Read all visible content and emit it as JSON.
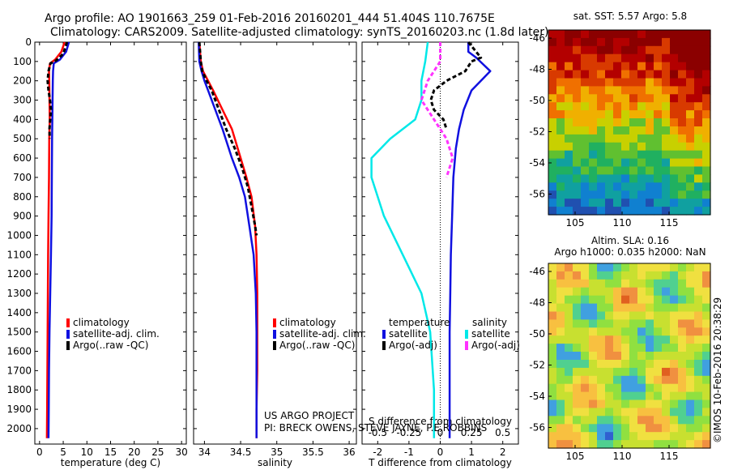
{
  "header": {
    "line1": "Argo profile: AO 1901663_259 01-Feb-2016 20160201_444 51.404S 110.7675E",
    "line2": "Climatology: CARS2009. Satellite-adjusted climatology: synTS_20160203.nc (1.8d later)"
  },
  "depth_ticks": [
    0,
    100,
    200,
    300,
    400,
    500,
    600,
    700,
    800,
    900,
    1000,
    1100,
    1200,
    1300,
    1400,
    1500,
    1600,
    1700,
    1800,
    1900,
    2000
  ],
  "colors": {
    "climatology": "#ff0000",
    "satellite": "#1010e0",
    "argo": "#000000",
    "sal_sat": "#00e8e8",
    "sal_argo": "#ff33ff"
  },
  "panels": {
    "temp": {
      "xlabel": "temperature (deg C)",
      "xticks": [
        "0",
        "5",
        "10",
        "15",
        "20",
        "25",
        "30"
      ],
      "legend": [
        "climatology",
        "satellite-adj. clim.",
        "Argo(..raw -QC)"
      ]
    },
    "sal": {
      "xlabel": "salinity",
      "xticks": [
        "34",
        "34.5",
        "35",
        "35.5",
        "36"
      ],
      "legend": [
        "climatology",
        "satellite-adj. clim.",
        "Argo(..raw -QC)"
      ],
      "credit1": "US ARGO PROJECT",
      "credit2": "PI: BRECK OWENS, STEVE JAYNE, P.E.ROBBINS"
    },
    "diff": {
      "xlabel": "T difference from climatology",
      "xticks": [
        "-2",
        "-1",
        "0",
        "1",
        "2"
      ],
      "top_label": "S difference from climatology",
      "top_ticks": [
        "-0.5",
        "-0.25",
        "0",
        "0.25",
        "0.5"
      ],
      "legend_temp_title": "temperature",
      "legend_sal_title": "salinity",
      "legend_temp": [
        "satellite",
        "Argo(-adj)"
      ],
      "legend_sal": [
        "satellite",
        "Argo(-adj)"
      ]
    }
  },
  "maps": {
    "sst_title": "sat. SST: 5.57 Argo: 5.8",
    "sla_title1": "Altim. SLA: 0.16",
    "sla_title2": "Argo h1000: 0.035 h2000: NaN",
    "yticks": [
      "-46",
      "-48",
      "-50",
      "-52",
      "-54",
      "-56"
    ],
    "xticks": [
      "105",
      "110",
      "115"
    ]
  },
  "stamp": "©IMOS 10-Feb-2016 20:38:29",
  "chart_data": [
    {
      "type": "line",
      "title": "",
      "xlabel": "temperature (deg C)",
      "ylabel": "",
      "xlim": [
        -1,
        31
      ],
      "ylim": [
        2080,
        0
      ],
      "series": [
        {
          "name": "climatology",
          "x": [
            5.3,
            4.6,
            3.3,
            2.2,
            2.0,
            2.05,
            2.1,
            2.15,
            2.05,
            2.0,
            1.9,
            1.8,
            1.75,
            1.7,
            1.65,
            1.6,
            1.55
          ],
          "y": [
            0,
            50,
            90,
            110,
            150,
            200,
            300,
            400,
            500,
            700,
            900,
            1100,
            1300,
            1500,
            1700,
            1900,
            2050
          ]
        },
        {
          "name": "satellite-adj. clim.",
          "x": [
            6.2,
            5.6,
            4.3,
            3.0,
            2.85,
            2.8,
            2.75,
            2.7,
            2.65,
            2.6,
            2.55,
            2.4,
            2.25,
            2.1,
            2.0,
            1.95,
            1.9
          ],
          "y": [
            0,
            50,
            90,
            110,
            150,
            200,
            300,
            400,
            500,
            700,
            900,
            1100,
            1300,
            1500,
            1700,
            1900,
            2050
          ]
        },
        {
          "name": "Argo(..raw -QC)",
          "x": [
            5.8,
            5.0,
            3.5,
            2.3,
            1.9,
            1.7,
            1.9,
            2.2,
            2.4,
            2.25,
            2.1,
            2.15
          ],
          "y": [
            0,
            60,
            95,
            110,
            150,
            200,
            250,
            300,
            350,
            400,
            450,
            500
          ]
        }
      ]
    },
    {
      "type": "line",
      "title": "",
      "xlabel": "salinity",
      "ylabel": "",
      "xlim": [
        33.85,
        36.1
      ],
      "ylim": [
        2080,
        0
      ],
      "series": [
        {
          "name": "climatology",
          "x": [
            33.93,
            33.95,
            33.98,
            34.05,
            34.12,
            34.25,
            34.38,
            34.5,
            34.58,
            34.65,
            34.7,
            34.72,
            34.73,
            34.73,
            34.73,
            34.72,
            34.72,
            34.72
          ],
          "y": [
            0,
            100,
            150,
            200,
            250,
            350,
            450,
            600,
            700,
            800,
            950,
            1100,
            1300,
            1500,
            1700,
            1900,
            2000,
            2050
          ]
        },
        {
          "name": "satellite-adj. clim.",
          "x": [
            33.92,
            33.93,
            33.96,
            34.0,
            34.05,
            34.15,
            34.25,
            34.38,
            34.48,
            34.56,
            34.62,
            34.68,
            34.71,
            34.72,
            34.72,
            34.72,
            34.72,
            34.72
          ],
          "y": [
            0,
            100,
            150,
            200,
            250,
            350,
            450,
            600,
            700,
            800,
            950,
            1100,
            1300,
            1500,
            1700,
            1900,
            2000,
            2050
          ]
        },
        {
          "name": "Argo(..raw -QC)",
          "x": [
            33.93,
            33.95,
            33.97,
            34.03,
            34.1,
            34.2,
            34.3,
            34.42,
            34.52,
            34.6,
            34.65,
            34.7,
            34.72
          ],
          "y": [
            0,
            100,
            150,
            200,
            250,
            350,
            450,
            550,
            650,
            750,
            850,
            950,
            1000
          ]
        }
      ]
    },
    {
      "type": "line",
      "title": "",
      "xlabel": "T difference from climatology",
      "ylabel": "",
      "xlim": [
        -2.5,
        2.5
      ],
      "ylim": [
        2080,
        0
      ],
      "series": [
        {
          "name": "satellite",
          "x": [
            0.9,
            0.9,
            1.15,
            1.6,
            1.0,
            0.75,
            0.6,
            0.5,
            0.42,
            0.38,
            0.34,
            0.32,
            0.3,
            0.3,
            0.3,
            0.3,
            0.3,
            0.3
          ],
          "y": [
            0,
            50,
            80,
            150,
            250,
            350,
            450,
            550,
            700,
            900,
            1100,
            1300,
            1500,
            1700,
            1900,
            2000,
            2030,
            2050
          ]
        },
        {
          "name": "Argo(-adj)",
          "x": [
            0.9,
            1.3,
            1.0,
            0.8,
            0.2,
            -0.2,
            -0.3,
            -0.2,
            0.1,
            0.2
          ],
          "y": [
            0,
            80,
            100,
            150,
            200,
            250,
            300,
            350,
            400,
            450
          ]
        },
        {
          "name": "satellite",
          "x": [
            -0.1,
            -0.12,
            -0.15,
            -0.15,
            -0.2,
            -0.4,
            -0.55,
            -0.55,
            -0.45,
            -0.3,
            -0.15,
            -0.08,
            -0.05,
            -0.05
          ],
          "y": [
            0,
            100,
            200,
            300,
            400,
            500,
            600,
            700,
            900,
            1100,
            1300,
            1500,
            1800,
            2050
          ]
        },
        {
          "name": "Argo(-adj)",
          "x": [
            0,
            0,
            -0.1,
            -0.15,
            -0.05,
            0.05,
            0.1,
            0.05
          ],
          "y": [
            0,
            100,
            200,
            300,
            400,
            500,
            600,
            700
          ]
        }
      ]
    }
  ]
}
